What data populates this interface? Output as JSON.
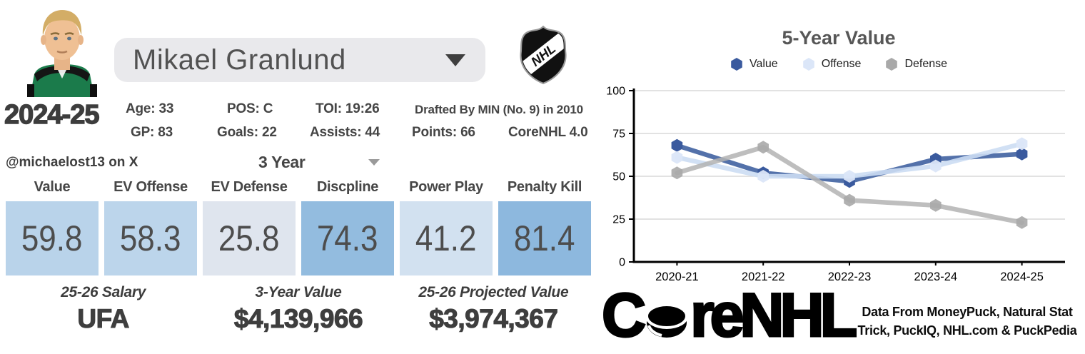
{
  "player_card": {
    "name_select": {
      "value": "Mikael Granlund"
    },
    "season": "2024-25",
    "handle": "@michaelost13 on X",
    "bio": {
      "age": "Age: 33",
      "pos": "POS: C",
      "toi": "TOI: 19:26",
      "drafted": "Drafted By MIN (No. 9) in 2010",
      "gp": "GP: 83",
      "goals": "Goals: 22",
      "assists": "Assists: 44",
      "points": "Points: 66",
      "model": "CoreNHL 4.0"
    },
    "period_select": {
      "value": "3 Year"
    },
    "stats": {
      "columns": [
        {
          "label": "Value",
          "value": "59.8",
          "bg": "#b9d3ea"
        },
        {
          "label": "EV Offense",
          "value": "58.3",
          "bg": "#bcd5eb"
        },
        {
          "label": "EV Defense",
          "value": "25.8",
          "bg": "#dfe5ee"
        },
        {
          "label": "Discpline",
          "value": "74.3",
          "bg": "#93bcdf"
        },
        {
          "label": "Power Play",
          "value": "41.2",
          "bg": "#d2e1f0"
        },
        {
          "label": "Penalty Kill",
          "value": "81.4",
          "bg": "#8db8de"
        }
      ]
    },
    "summary": [
      {
        "label": "25-26 Salary",
        "value": "UFA"
      },
      {
        "label": "3-Year Value",
        "value": "$4,139,966"
      },
      {
        "label": "25-26 Projected Value",
        "value": "$3,974,367"
      }
    ]
  },
  "nhl_logo_text": "NHL",
  "chart_data": {
    "type": "line",
    "title": "5-Year Value",
    "categories": [
      "2020-21",
      "2021-22",
      "2022-23",
      "2023-24",
      "2024-25"
    ],
    "series": [
      {
        "name": "Value",
        "values": [
          68,
          52,
          47,
          60,
          63
        ],
        "line_color": "#4a69a5",
        "marker_color": "#3a5a9e",
        "opacity": 0.95
      },
      {
        "name": "Offense",
        "values": [
          61,
          50,
          50,
          56,
          69
        ],
        "line_color": "#ccddf3",
        "marker_color": "#dbe6f8",
        "opacity": 0.9
      },
      {
        "name": "Defense",
        "values": [
          52,
          67,
          36,
          33,
          23
        ],
        "line_color": "#b3b3b3",
        "marker_color": "#a9a9a9",
        "opacity": 0.85
      }
    ],
    "ylim": [
      0,
      100
    ],
    "yticks": [
      0,
      25,
      50,
      75,
      100
    ],
    "grid": true,
    "legend_position": "top",
    "marker": "hexagon",
    "axis_color": "#000000",
    "grid_color": "#d9d9d9"
  },
  "branding": {
    "logo_prefix": "C",
    "logo_suffix": "reNHL",
    "credit_line1": "Data From MoneyPuck, Natural Stat",
    "credit_line2": "Trick, PuckIQ, NHL.com & PuckPedia"
  }
}
